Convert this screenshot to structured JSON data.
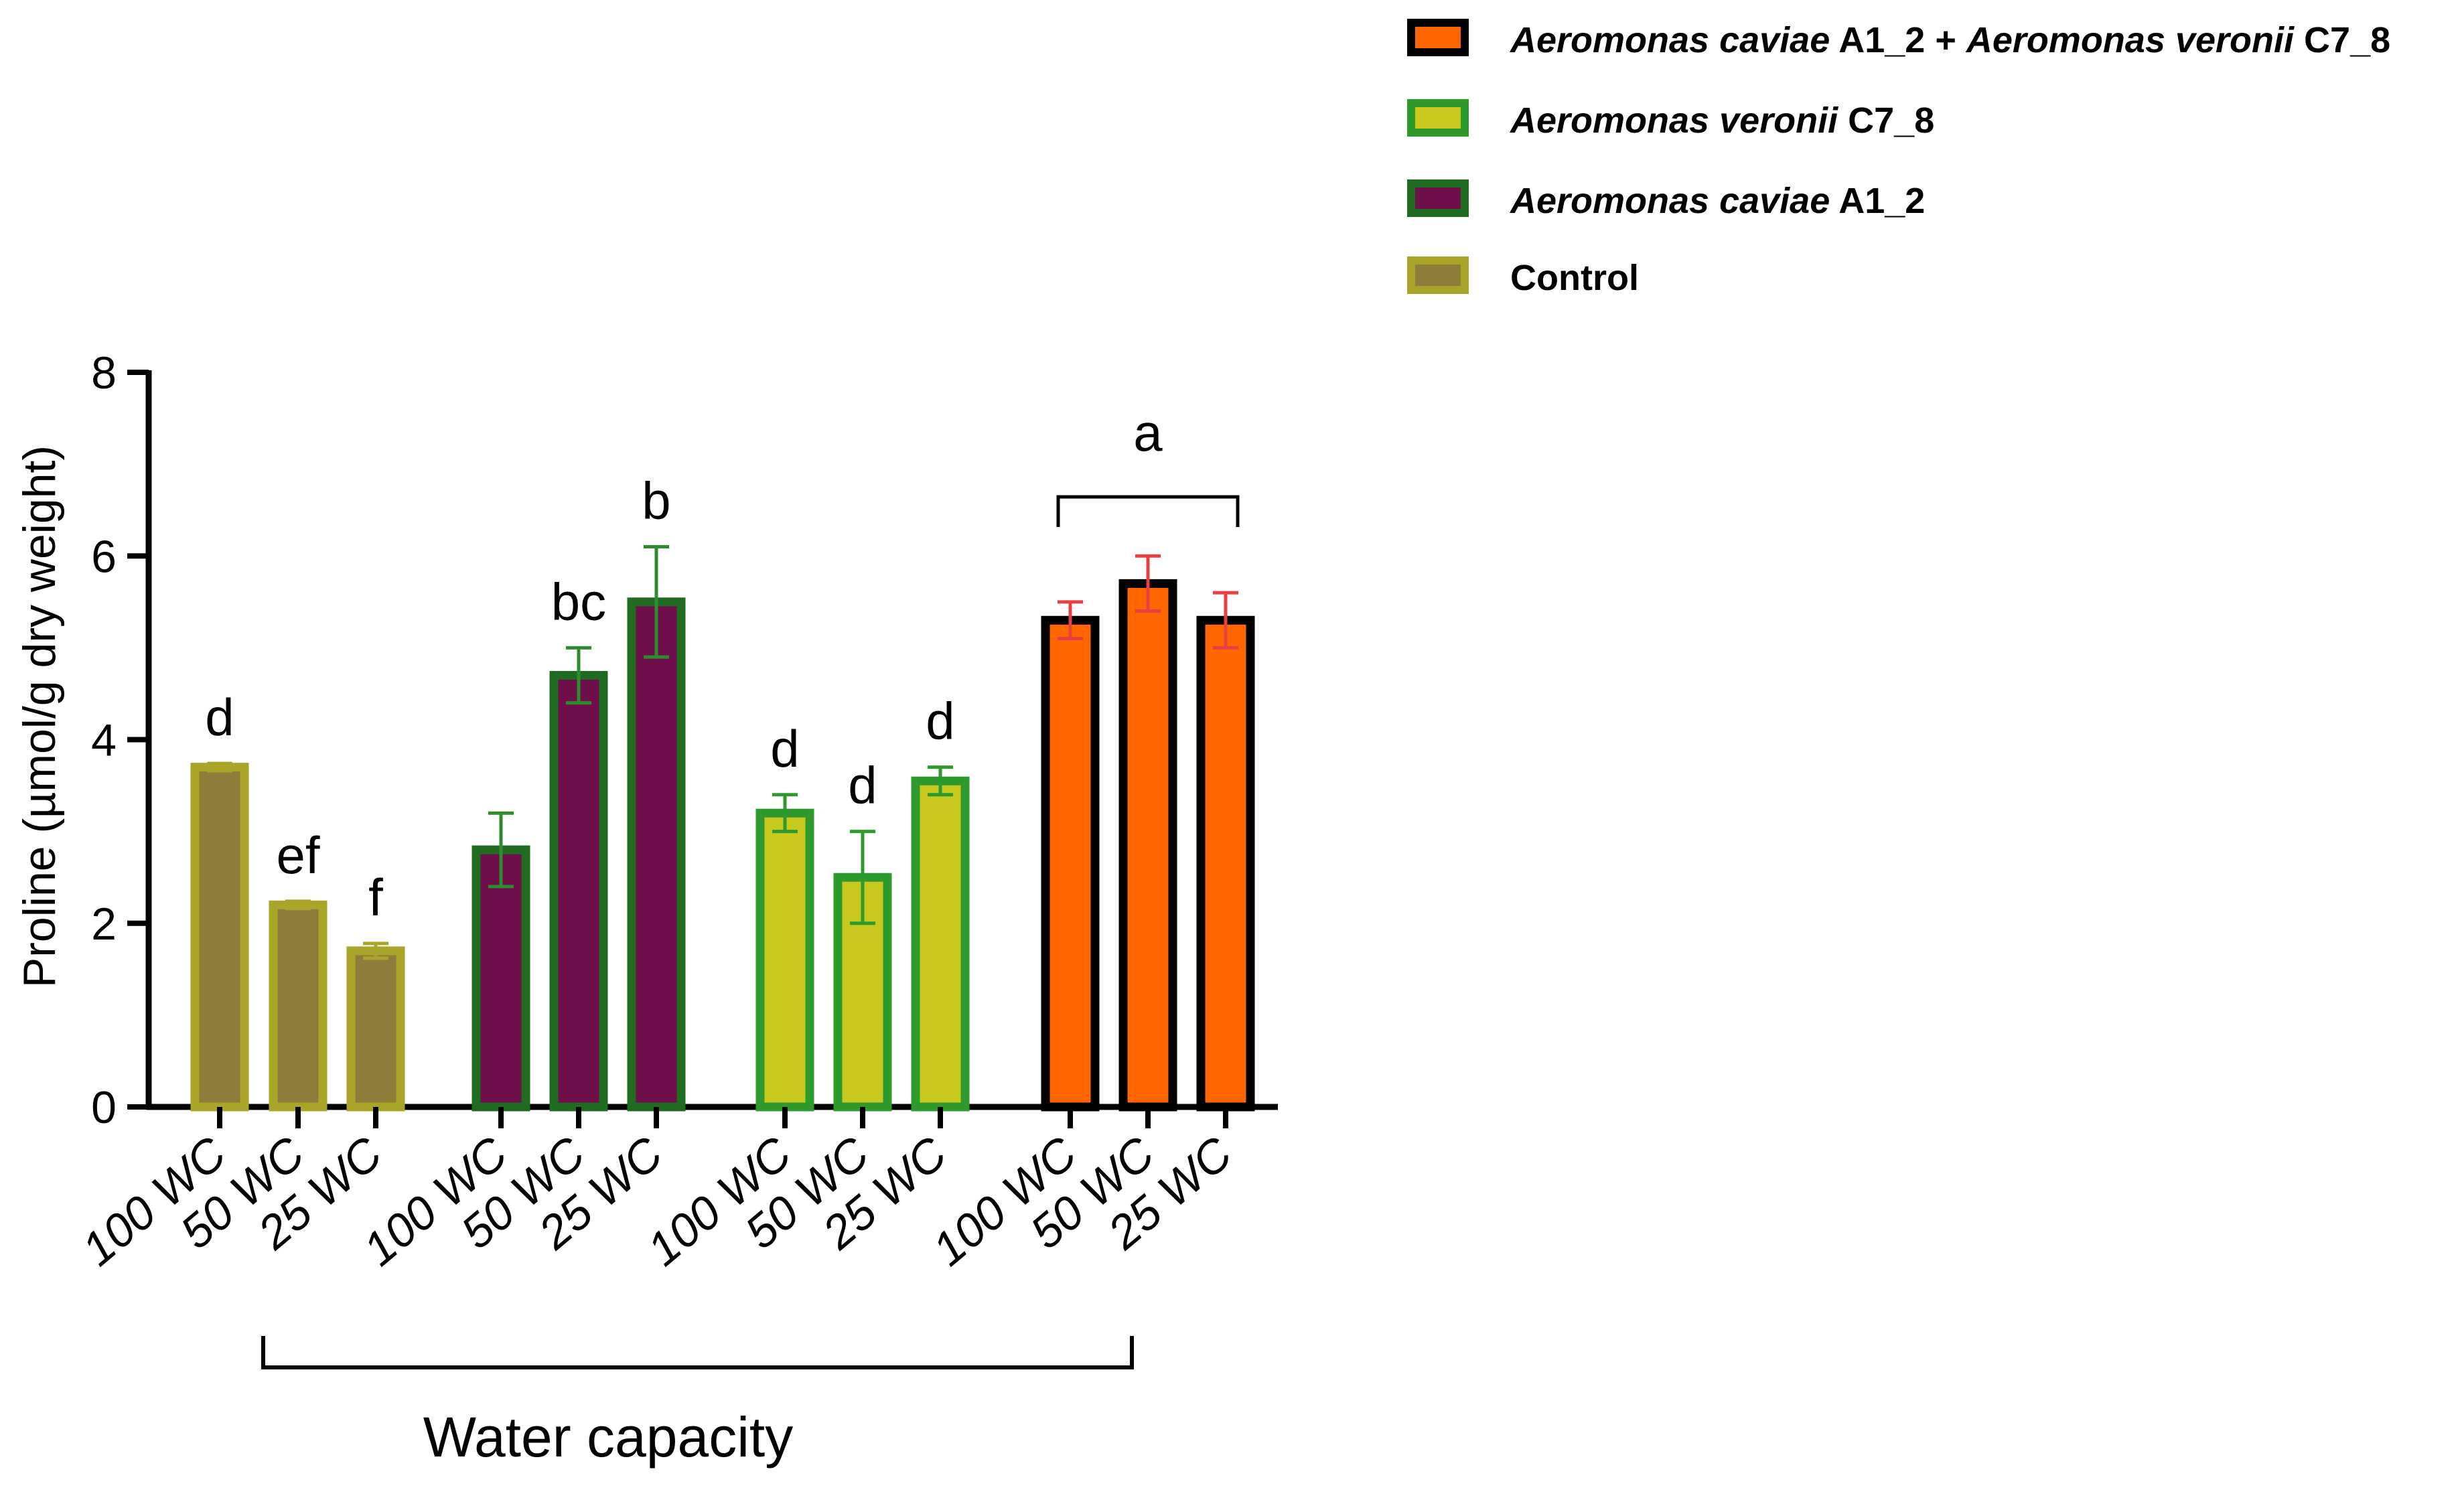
{
  "chart_data": {
    "type": "bar",
    "title": "",
    "ylabel": "Proline (µmol/g dry weight)",
    "xlabel": "Water capacity",
    "ylim": [
      0,
      8
    ],
    "yticks": [
      0,
      2,
      4,
      6,
      8
    ],
    "grid": false,
    "legend_position": "top-right",
    "legend": [
      {
        "series": 3,
        "italic": "Aeromonas caviae",
        "plain": " A1_2 + ",
        "italic2": "Aeromonas veronii",
        "plain2": " C7_8"
      },
      {
        "series": 2,
        "italic": "Aeromonas veronii",
        "plain": " C7_8",
        "italic2": "",
        "plain2": ""
      },
      {
        "series": 1,
        "italic": "Aeromonas caviae",
        "plain": " A1_2",
        "italic2": "",
        "plain2": ""
      },
      {
        "series": 0,
        "italic": "",
        "plain": "Control",
        "italic2": "",
        "plain2": ""
      }
    ],
    "categories": [
      "100 WC",
      "50 WC",
      "25 WC"
    ],
    "series": [
      {
        "name": "Control",
        "fill": "#8B7D3A",
        "edge": "#A8A528",
        "errcolor": "#A8A528",
        "values": [
          3.7,
          2.2,
          1.7
        ],
        "errors": [
          0.04,
          0.04,
          0.08
        ],
        "letters": [
          "d",
          "ef",
          "f"
        ]
      },
      {
        "name": "Aeromonas caviae A1_2",
        "fill": "#6E0E4A",
        "edge": "#1F6B1F",
        "errcolor": "#2E8B2E",
        "values": [
          2.8,
          4.7,
          5.5
        ],
        "errors": [
          0.4,
          0.3,
          0.6
        ],
        "letters": [
          "",
          "bc",
          "b"
        ]
      },
      {
        "name": "Aeromonas veronii C7_8",
        "fill": "#C8C81E",
        "edge": "#2E9A2E",
        "errcolor": "#2E9A2E",
        "values": [
          3.2,
          2.5,
          3.55
        ],
        "errors": [
          0.2,
          0.5,
          0.15
        ],
        "letters": [
          "d",
          "d",
          "d"
        ]
      },
      {
        "name": "Aeromonas caviae A1_2 + Aeromonas veronii C7_8",
        "fill": "#FF6600",
        "edge": "#000000",
        "errcolor": "#E84040",
        "values": [
          5.3,
          5.7,
          5.3
        ],
        "errors": [
          0.2,
          0.3,
          0.3
        ],
        "letters": [
          "",
          "",
          ""
        ]
      }
    ],
    "bracket_label": "a"
  }
}
